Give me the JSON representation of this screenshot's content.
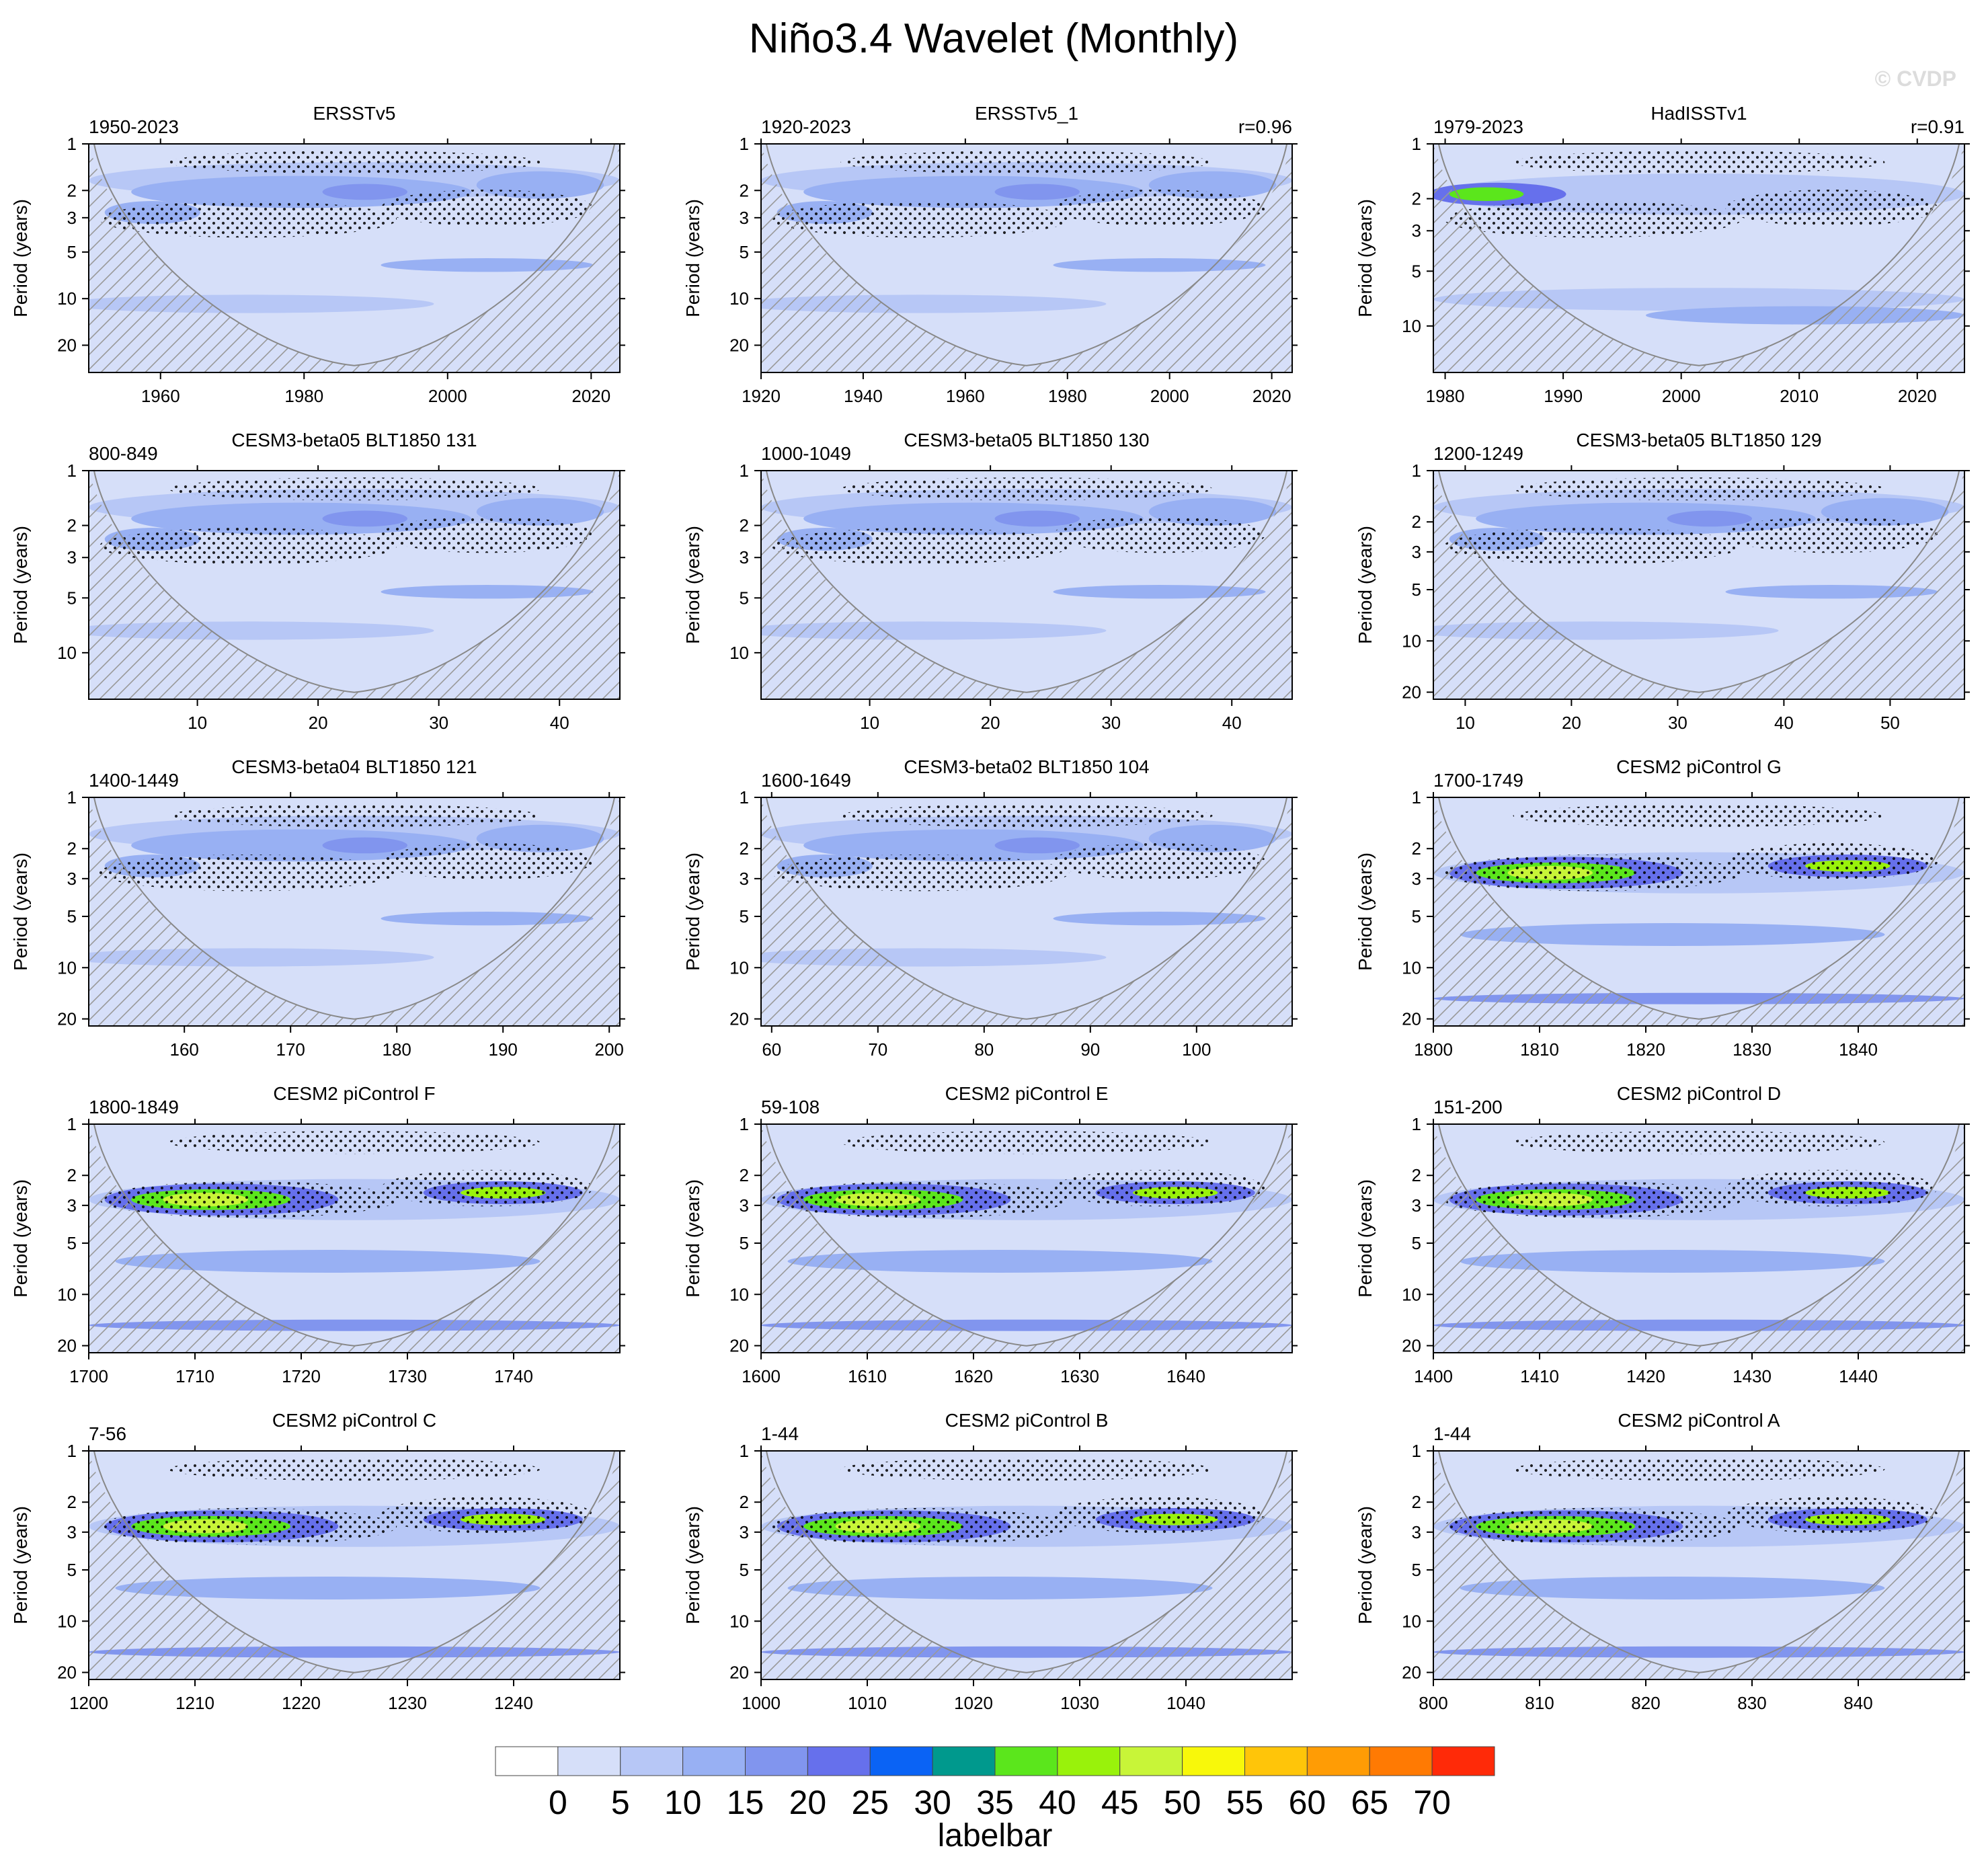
{
  "title": "Niño3.4 Wavelet (Monthly)",
  "watermark": "© CVDP",
  "colorbar": {
    "labels": [
      "0",
      "5",
      "10",
      "15",
      "20",
      "25",
      "30",
      "35",
      "40",
      "45",
      "50",
      "55",
      "60",
      "65",
      "70"
    ],
    "title": "labelbar",
    "colors": [
      "#ffffff",
      "#d6dff9",
      "#b7c7f6",
      "#98b0f3",
      "#8195ee",
      "#6670ec",
      "#0a63f5",
      "#00998d",
      "#5be61c",
      "#99f20b",
      "#c8f538",
      "#f8f80a",
      "#ffc509",
      "#ff9c05",
      "#ff7a03",
      "#ff2a08"
    ]
  },
  "colors": {
    "base": "#d6dff9",
    "coi_line": "#888888",
    "hatch": "#999999",
    "stipple": "#000000"
  },
  "chart_data": [
    {
      "type": "heatmap",
      "title": "ERSSTv5",
      "left_label": "1950-2023",
      "right_label": "",
      "ylabel": "Period (years)",
      "yticks": [
        "1",
        "2",
        "3",
        "5",
        "10",
        "20"
      ],
      "xticks": [
        "1960",
        "1980",
        "2000",
        "2020"
      ],
      "xlim": [
        1950,
        2024
      ],
      "ylim": [
        1,
        30
      ],
      "intensity": "low"
    },
    {
      "type": "heatmap",
      "title": "ERSSTv5_1",
      "left_label": "1920-2023",
      "right_label": "r=0.96",
      "ylabel": "Period (years)",
      "yticks": [
        "1",
        "2",
        "3",
        "5",
        "10",
        "20"
      ],
      "xticks": [
        "1920",
        "1940",
        "1960",
        "1980",
        "2000",
        "2020"
      ],
      "xlim": [
        1920,
        2024
      ],
      "ylim": [
        1,
        30
      ],
      "intensity": "low"
    },
    {
      "type": "heatmap",
      "title": "HadISSTv1",
      "left_label": "1979-2023",
      "right_label": "r=0.91",
      "ylabel": "Period (years)",
      "yticks": [
        "1",
        "2",
        "3",
        "5",
        "10"
      ],
      "xticks": [
        "1980",
        "1990",
        "2000",
        "2010",
        "2020"
      ],
      "xlim": [
        1979,
        2024
      ],
      "ylim": [
        1,
        18
      ],
      "intensity": "med"
    },
    {
      "type": "heatmap",
      "title": "CESM3-beta05 BLT1850 131",
      "left_label": "800-849",
      "right_label": "",
      "ylabel": "Period (years)",
      "yticks": [
        "1",
        "2",
        "3",
        "5",
        "10"
      ],
      "xticks": [
        "10",
        "20",
        "30",
        "40"
      ],
      "xlim": [
        1,
        45
      ],
      "ylim": [
        1,
        18
      ],
      "intensity": "low"
    },
    {
      "type": "heatmap",
      "title": "CESM3-beta05 BLT1850 130",
      "left_label": "1000-1049",
      "right_label": "",
      "ylabel": "Period (years)",
      "yticks": [
        "1",
        "2",
        "3",
        "5",
        "10"
      ],
      "xticks": [
        "10",
        "20",
        "30",
        "40"
      ],
      "xlim": [
        1,
        45
      ],
      "ylim": [
        1,
        18
      ],
      "intensity": "low"
    },
    {
      "type": "heatmap",
      "title": "CESM3-beta05 BLT1850 129",
      "left_label": "1200-1249",
      "right_label": "",
      "ylabel": "Period (years)",
      "yticks": [
        "1",
        "2",
        "3",
        "5",
        "10",
        "20"
      ],
      "xticks": [
        "10",
        "20",
        "30",
        "40",
        "50"
      ],
      "xlim": [
        7,
        57
      ],
      "ylim": [
        1,
        22
      ],
      "intensity": "low"
    },
    {
      "type": "heatmap",
      "title": "CESM3-beta04 BLT1850 121",
      "left_label": "1400-1449",
      "right_label": "",
      "ylabel": "Period (years)",
      "yticks": [
        "1",
        "2",
        "3",
        "5",
        "10",
        "20"
      ],
      "xticks": [
        "160",
        "170",
        "180",
        "190",
        "200"
      ],
      "xlim": [
        151,
        201
      ],
      "ylim": [
        1,
        22
      ],
      "intensity": "low"
    },
    {
      "type": "heatmap",
      "title": "CESM3-beta02 BLT1850 104",
      "left_label": "1600-1649",
      "right_label": "",
      "ylabel": "Period (years)",
      "yticks": [
        "1",
        "2",
        "3",
        "5",
        "10",
        "20"
      ],
      "xticks": [
        "60",
        "70",
        "80",
        "90",
        "100"
      ],
      "xlim": [
        59,
        109
      ],
      "ylim": [
        1,
        22
      ],
      "intensity": "low"
    },
    {
      "type": "heatmap",
      "title": "CESM2 piControl G",
      "left_label": "1700-1749",
      "right_label": "",
      "ylabel": "Period (years)",
      "yticks": [
        "1",
        "2",
        "3",
        "5",
        "10",
        "20"
      ],
      "xticks": [
        "1800",
        "1810",
        "1820",
        "1830",
        "1840"
      ],
      "xlim": [
        1800,
        1850
      ],
      "ylim": [
        1,
        22
      ],
      "intensity": "high"
    },
    {
      "type": "heatmap",
      "title": "CESM2 piControl F",
      "left_label": "1800-1849",
      "right_label": "",
      "ylabel": "Period (years)",
      "yticks": [
        "1",
        "2",
        "3",
        "5",
        "10",
        "20"
      ],
      "xticks": [
        "1700",
        "1710",
        "1720",
        "1730",
        "1740"
      ],
      "xlim": [
        1700,
        1750
      ],
      "ylim": [
        1,
        22
      ],
      "intensity": "high"
    },
    {
      "type": "heatmap",
      "title": "CESM2 piControl E",
      "left_label": "59-108",
      "right_label": "",
      "ylabel": "Period (years)",
      "yticks": [
        "1",
        "2",
        "3",
        "5",
        "10",
        "20"
      ],
      "xticks": [
        "1600",
        "1610",
        "1620",
        "1630",
        "1640"
      ],
      "xlim": [
        1600,
        1650
      ],
      "ylim": [
        1,
        22
      ],
      "intensity": "high"
    },
    {
      "type": "heatmap",
      "title": "CESM2 piControl D",
      "left_label": "151-200",
      "right_label": "",
      "ylabel": "Period (years)",
      "yticks": [
        "1",
        "2",
        "3",
        "5",
        "10",
        "20"
      ],
      "xticks": [
        "1400",
        "1410",
        "1420",
        "1430",
        "1440"
      ],
      "xlim": [
        1400,
        1450
      ],
      "ylim": [
        1,
        22
      ],
      "intensity": "high"
    },
    {
      "type": "heatmap",
      "title": "CESM2 piControl C",
      "left_label": "7-56",
      "right_label": "",
      "ylabel": "Period (years)",
      "yticks": [
        "1",
        "2",
        "3",
        "5",
        "10",
        "20"
      ],
      "xticks": [
        "1200",
        "1210",
        "1220",
        "1230",
        "1240"
      ],
      "xlim": [
        1200,
        1250
      ],
      "ylim": [
        1,
        22
      ],
      "intensity": "high"
    },
    {
      "type": "heatmap",
      "title": "CESM2 piControl B",
      "left_label": "1-44",
      "right_label": "",
      "ylabel": "Period (years)",
      "yticks": [
        "1",
        "2",
        "3",
        "5",
        "10",
        "20"
      ],
      "xticks": [
        "1000",
        "1010",
        "1020",
        "1030",
        "1040"
      ],
      "xlim": [
        1000,
        1050
      ],
      "ylim": [
        1,
        22
      ],
      "intensity": "high"
    },
    {
      "type": "heatmap",
      "title": "CESM2 piControl A",
      "left_label": "1-44",
      "right_label": "",
      "ylabel": "Period (years)",
      "yticks": [
        "1",
        "2",
        "3",
        "5",
        "10",
        "20"
      ],
      "xticks": [
        "800",
        "810",
        "820",
        "830",
        "840"
      ],
      "xlim": [
        800,
        850
      ],
      "ylim": [
        1,
        22
      ],
      "intensity": "high"
    }
  ]
}
